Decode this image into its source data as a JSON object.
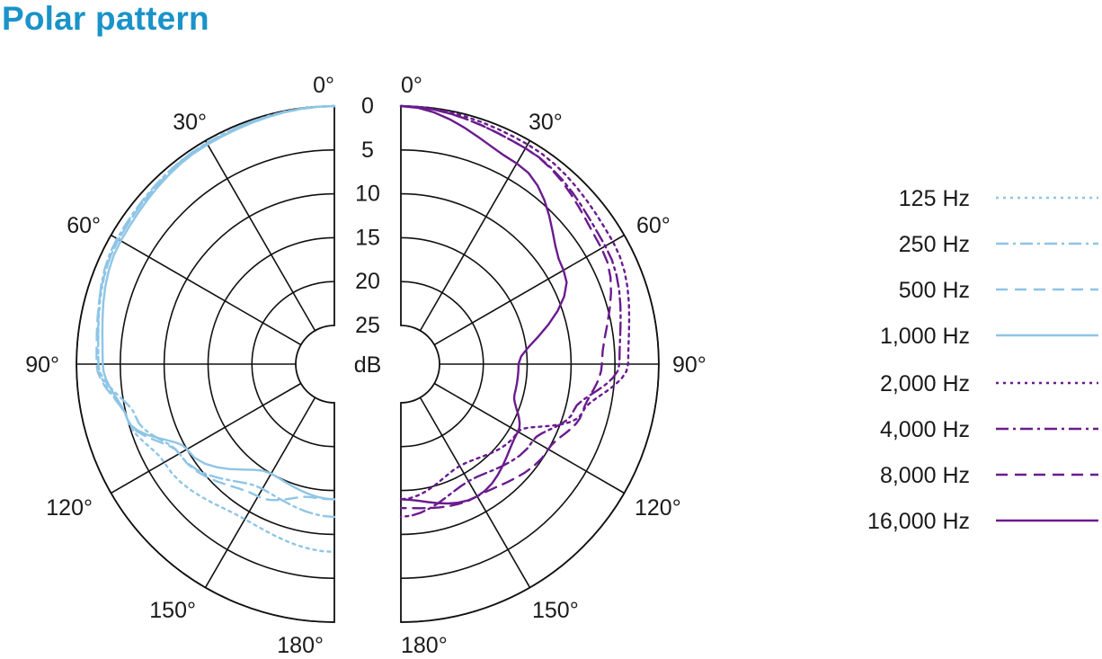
{
  "page": {
    "title": "Polar pattern"
  },
  "chart_data": [
    {
      "type": "polar",
      "side": "left",
      "angle_labels": [
        "0°",
        "30°",
        "60°",
        "90°",
        "120°",
        "150°",
        "180°"
      ],
      "radial_labels": [
        "0",
        "5",
        "10",
        "15",
        "20",
        "25",
        "dB"
      ],
      "rlim_db": [
        0,
        25
      ],
      "grid": true,
      "color": "#8ec5e6",
      "series": [
        {
          "name": "125 Hz",
          "dash": "dot",
          "points": [
            [
              0,
              0
            ],
            [
              30,
              0.3
            ],
            [
              60,
              1
            ],
            [
              90,
              2.5
            ],
            [
              105,
              5
            ],
            [
              120,
              7
            ],
            [
              150,
              9
            ],
            [
              180,
              8
            ]
          ]
        },
        {
          "name": "250 Hz",
          "dash": "dashdot",
          "points": [
            [
              0,
              0
            ],
            [
              30,
              0.3
            ],
            [
              60,
              0.8
            ],
            [
              90,
              2.5
            ],
            [
              105,
              6
            ],
            [
              120,
              9
            ],
            [
              150,
              13
            ],
            [
              180,
              12
            ]
          ]
        },
        {
          "name": "500 Hz",
          "dash": "dash",
          "points": [
            [
              0,
              0
            ],
            [
              30,
              0.4
            ],
            [
              60,
              1
            ],
            [
              90,
              2.3
            ],
            [
              105,
              5
            ],
            [
              120,
              9
            ],
            [
              150,
              12
            ],
            [
              170,
              14
            ],
            [
              180,
              14
            ]
          ]
        },
        {
          "name": "1,000 Hz",
          "dash": "solid",
          "points": [
            [
              0,
              0
            ],
            [
              30,
              0.5
            ],
            [
              60,
              1.3
            ],
            [
              90,
              3
            ],
            [
              105,
              5
            ],
            [
              120,
              10
            ],
            [
              150,
              15
            ],
            [
              180,
              14
            ]
          ]
        }
      ]
    },
    {
      "type": "polar",
      "side": "right",
      "angle_labels": [
        "0°",
        "30°",
        "60°",
        "90°",
        "120°",
        "150°",
        "180°"
      ],
      "rlim_db": [
        0,
        25
      ],
      "grid": true,
      "color": "#6a1b8e",
      "series": [
        {
          "name": "2,000 Hz",
          "dash": "dot",
          "points": [
            [
              0,
              0
            ],
            [
              30,
              0.5
            ],
            [
              60,
              1.5
            ],
            [
              90,
              3.5
            ],
            [
              105,
              8
            ],
            [
              120,
              14
            ],
            [
              150,
              16
            ],
            [
              180,
              14
            ]
          ]
        },
        {
          "name": "4,000 Hz",
          "dash": "dashdot",
          "points": [
            [
              0,
              0
            ],
            [
              30,
              1
            ],
            [
              60,
              2.5
            ],
            [
              90,
              4.5
            ],
            [
              105,
              9
            ],
            [
              120,
              12
            ],
            [
              150,
              14
            ],
            [
              180,
              12
            ]
          ]
        },
        {
          "name": "8,000 Hz",
          "dash": "dash",
          "points": [
            [
              0,
              0
            ],
            [
              30,
              1
            ],
            [
              60,
              3
            ],
            [
              90,
              6.5
            ],
            [
              105,
              8
            ],
            [
              120,
              10
            ],
            [
              150,
              12
            ],
            [
              180,
              13
            ]
          ]
        },
        {
          "name": "16,000 Hz",
          "dash": "solid",
          "points": [
            [
              0,
              0
            ],
            [
              30,
              3
            ],
            [
              60,
              8
            ],
            [
              90,
              16
            ],
            [
              105,
              16
            ],
            [
              120,
              14
            ],
            [
              150,
              12
            ],
            [
              180,
              14
            ]
          ]
        }
      ]
    }
  ],
  "legend": {
    "placement": "right",
    "entries": [
      {
        "label": "125 Hz",
        "color": "#8ec5e6",
        "dash": "dot"
      },
      {
        "label": "250 Hz",
        "color": "#8ec5e6",
        "dash": "dashdot"
      },
      {
        "label": "500 Hz",
        "color": "#8ec5e6",
        "dash": "dash"
      },
      {
        "label": "1,000 Hz",
        "color": "#8ec5e6",
        "dash": "solid"
      },
      {
        "label": "2,000 Hz",
        "color": "#6a1b8e",
        "dash": "dot"
      },
      {
        "label": "4,000 Hz",
        "color": "#6a1b8e",
        "dash": "dashdot"
      },
      {
        "label": "8,000 Hz",
        "color": "#6a1b8e",
        "dash": "dash"
      },
      {
        "label": "16,000 Hz",
        "color": "#6a1b8e",
        "dash": "solid"
      }
    ]
  },
  "colors": {
    "title": "#1a93c9",
    "grid": "#111111"
  }
}
